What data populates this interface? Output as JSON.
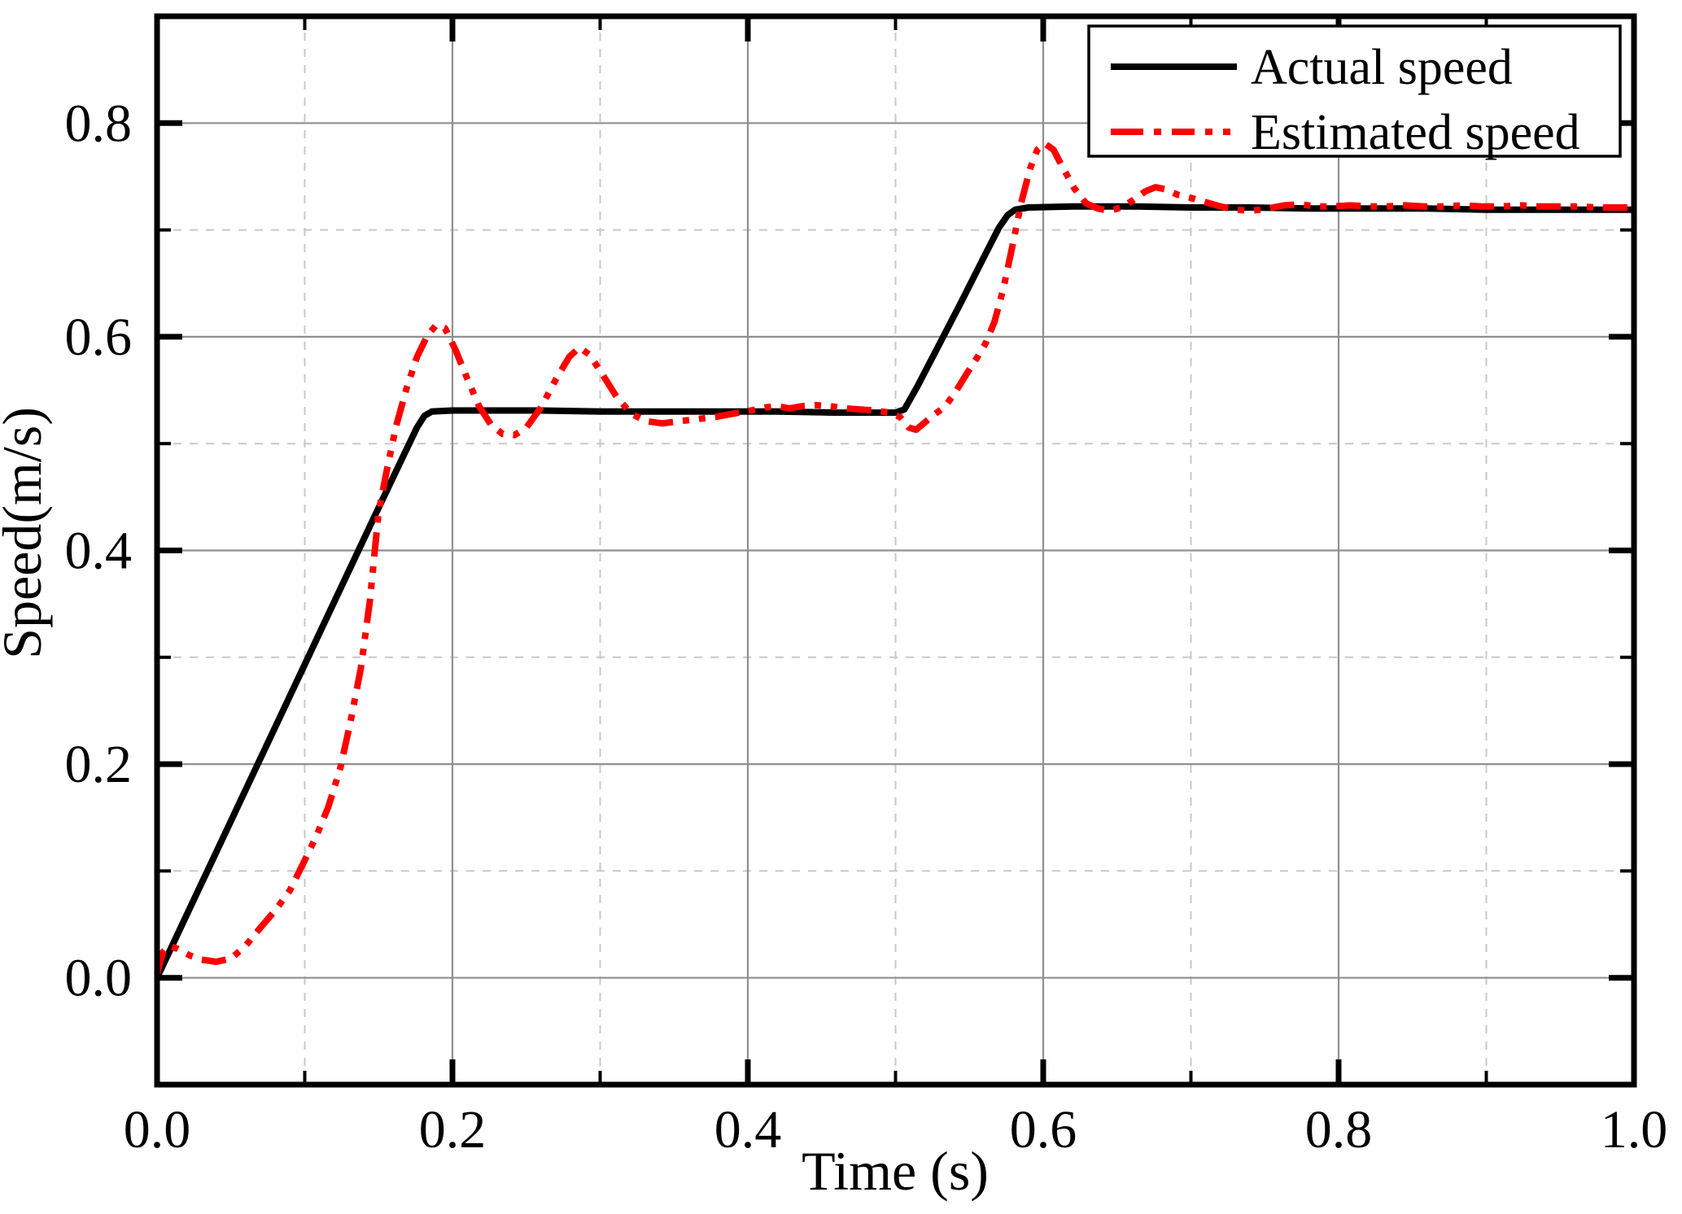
{
  "chart_data": {
    "type": "line",
    "title": "",
    "xlabel": "Time (s)",
    "ylabel": "Speed(m/s)",
    "xlim": [
      0.0,
      1.0
    ],
    "ylim": [
      -0.1,
      0.9
    ],
    "x_major_ticks": [
      0.0,
      0.2,
      0.4,
      0.6,
      0.8,
      1.0
    ],
    "x_major_tick_labels": [
      "0.0",
      "0.2",
      "0.4",
      "0.6",
      "0.8",
      "1.0"
    ],
    "x_minor_ticks": [
      0.1,
      0.3,
      0.5,
      0.7,
      0.9
    ],
    "y_major_ticks": [
      0.0,
      0.2,
      0.4,
      0.6,
      0.8
    ],
    "y_major_tick_labels": [
      "0.0",
      "0.2",
      "0.4",
      "0.6",
      "0.8"
    ],
    "y_minor_ticks": [
      0.1,
      0.3,
      0.5,
      0.7
    ],
    "grid": {
      "major": true,
      "minor": true,
      "major_color": "#8f8f8f",
      "minor_color": "#c8c8c8",
      "minor_style": "dashed"
    },
    "frame_color": "#000000",
    "background_color": "#ffffff",
    "legend": {
      "position": "top-right",
      "entries": [
        {
          "label": "Actual speed",
          "color": "#000000",
          "style": "solid"
        },
        {
          "label": "Estimated speed",
          "color": "#ff0000",
          "style": "dash-dot-dot"
        }
      ]
    },
    "series": [
      {
        "name": "Actual speed",
        "color": "#000000",
        "style": "solid",
        "width": 8,
        "points": [
          [
            0.0,
            0.0
          ],
          [
            0.03,
            0.088
          ],
          [
            0.06,
            0.176
          ],
          [
            0.09,
            0.264
          ],
          [
            0.12,
            0.352
          ],
          [
            0.15,
            0.44
          ],
          [
            0.168,
            0.492
          ],
          [
            0.176,
            0.515
          ],
          [
            0.181,
            0.526
          ],
          [
            0.186,
            0.53
          ],
          [
            0.2,
            0.531
          ],
          [
            0.23,
            0.531
          ],
          [
            0.26,
            0.531
          ],
          [
            0.3,
            0.53
          ],
          [
            0.34,
            0.53
          ],
          [
            0.38,
            0.53
          ],
          [
            0.42,
            0.53
          ],
          [
            0.46,
            0.529
          ],
          [
            0.5,
            0.529
          ],
          [
            0.506,
            0.532
          ],
          [
            0.515,
            0.554
          ],
          [
            0.53,
            0.594
          ],
          [
            0.545,
            0.634
          ],
          [
            0.56,
            0.675
          ],
          [
            0.57,
            0.702
          ],
          [
            0.576,
            0.714
          ],
          [
            0.581,
            0.719
          ],
          [
            0.59,
            0.721
          ],
          [
            0.62,
            0.722
          ],
          [
            0.66,
            0.722
          ],
          [
            0.7,
            0.721
          ],
          [
            0.74,
            0.721
          ],
          [
            0.78,
            0.72
          ],
          [
            0.82,
            0.72
          ],
          [
            0.86,
            0.72
          ],
          [
            0.9,
            0.719
          ],
          [
            0.94,
            0.719
          ],
          [
            0.97,
            0.719
          ],
          [
            1.0,
            0.719
          ]
        ]
      },
      {
        "name": "Estimated speed",
        "color": "#ff0000",
        "style": "dash-dot-dot",
        "width": 8,
        "points": [
          [
            0.0,
            0.004
          ],
          [
            0.004,
            0.024
          ],
          [
            0.008,
            0.03
          ],
          [
            0.014,
            0.027
          ],
          [
            0.022,
            0.021
          ],
          [
            0.03,
            0.017
          ],
          [
            0.04,
            0.015
          ],
          [
            0.05,
            0.018
          ],
          [
            0.06,
            0.03
          ],
          [
            0.07,
            0.047
          ],
          [
            0.08,
            0.063
          ],
          [
            0.09,
            0.082
          ],
          [
            0.1,
            0.11
          ],
          [
            0.108,
            0.133
          ],
          [
            0.116,
            0.16
          ],
          [
            0.124,
            0.196
          ],
          [
            0.131,
            0.24
          ],
          [
            0.138,
            0.29
          ],
          [
            0.144,
            0.352
          ],
          [
            0.15,
            0.436
          ],
          [
            0.156,
            0.478
          ],
          [
            0.162,
            0.517
          ],
          [
            0.169,
            0.552
          ],
          [
            0.176,
            0.581
          ],
          [
            0.183,
            0.601
          ],
          [
            0.189,
            0.611
          ],
          [
            0.195,
            0.608
          ],
          [
            0.202,
            0.588
          ],
          [
            0.21,
            0.561
          ],
          [
            0.218,
            0.535
          ],
          [
            0.226,
            0.518
          ],
          [
            0.234,
            0.509
          ],
          [
            0.242,
            0.508
          ],
          [
            0.25,
            0.515
          ],
          [
            0.26,
            0.534
          ],
          [
            0.27,
            0.56
          ],
          [
            0.279,
            0.581
          ],
          [
            0.286,
            0.59
          ],
          [
            0.293,
            0.583
          ],
          [
            0.301,
            0.566
          ],
          [
            0.311,
            0.544
          ],
          [
            0.321,
            0.528
          ],
          [
            0.331,
            0.521
          ],
          [
            0.342,
            0.519
          ],
          [
            0.354,
            0.521
          ],
          [
            0.366,
            0.523
          ],
          [
            0.378,
            0.525
          ],
          [
            0.39,
            0.528
          ],
          [
            0.402,
            0.531
          ],
          [
            0.412,
            0.534
          ],
          [
            0.42,
            0.535
          ],
          [
            0.428,
            0.533
          ],
          [
            0.437,
            0.535
          ],
          [
            0.446,
            0.536
          ],
          [
            0.456,
            0.535
          ],
          [
            0.466,
            0.533
          ],
          [
            0.476,
            0.532
          ],
          [
            0.486,
            0.531
          ],
          [
            0.496,
            0.529
          ],
          [
            0.503,
            0.525
          ],
          [
            0.509,
            0.515
          ],
          [
            0.514,
            0.513
          ],
          [
            0.52,
            0.52
          ],
          [
            0.527,
            0.528
          ],
          [
            0.533,
            0.534
          ],
          [
            0.54,
            0.547
          ],
          [
            0.548,
            0.565
          ],
          [
            0.555,
            0.58
          ],
          [
            0.561,
            0.594
          ],
          [
            0.567,
            0.614
          ],
          [
            0.573,
            0.645
          ],
          [
            0.579,
            0.684
          ],
          [
            0.585,
            0.725
          ],
          [
            0.591,
            0.757
          ],
          [
            0.596,
            0.775
          ],
          [
            0.601,
            0.781
          ],
          [
            0.607,
            0.775
          ],
          [
            0.613,
            0.759
          ],
          [
            0.621,
            0.739
          ],
          [
            0.629,
            0.725
          ],
          [
            0.637,
            0.72
          ],
          [
            0.645,
            0.718
          ],
          [
            0.653,
            0.721
          ],
          [
            0.661,
            0.728
          ],
          [
            0.669,
            0.736
          ],
          [
            0.676,
            0.74
          ],
          [
            0.683,
            0.738
          ],
          [
            0.691,
            0.733
          ],
          [
            0.7,
            0.73
          ],
          [
            0.71,
            0.726
          ],
          [
            0.72,
            0.722
          ],
          [
            0.73,
            0.719
          ],
          [
            0.741,
            0.718
          ],
          [
            0.752,
            0.72
          ],
          [
            0.763,
            0.723
          ],
          [
            0.774,
            0.724
          ],
          [
            0.785,
            0.722
          ],
          [
            0.796,
            0.722
          ],
          [
            0.808,
            0.723
          ],
          [
            0.82,
            0.722
          ],
          [
            0.832,
            0.722
          ],
          [
            0.845,
            0.723
          ],
          [
            0.858,
            0.722
          ],
          [
            0.871,
            0.722
          ],
          [
            0.884,
            0.723
          ],
          [
            0.897,
            0.722
          ],
          [
            0.91,
            0.722
          ],
          [
            0.923,
            0.723
          ],
          [
            0.936,
            0.722
          ],
          [
            0.949,
            0.722
          ],
          [
            0.962,
            0.722
          ],
          [
            0.975,
            0.721
          ],
          [
            0.988,
            0.721
          ],
          [
            1.0,
            0.721
          ]
        ]
      }
    ]
  }
}
